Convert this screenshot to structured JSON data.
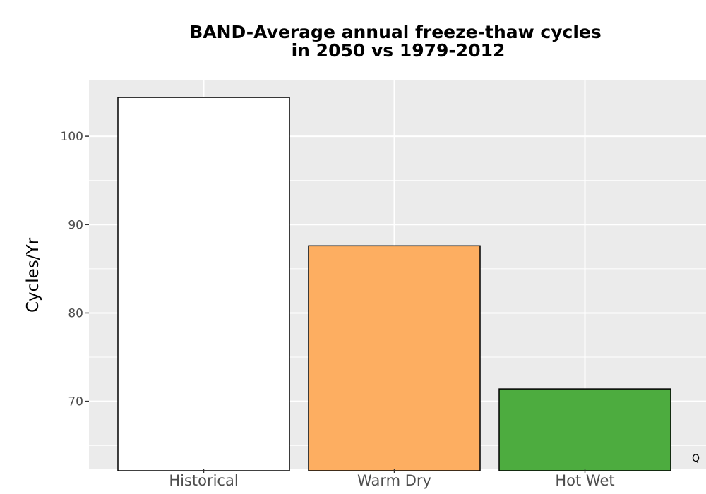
{
  "chart_data": {
    "type": "bar",
    "title_lines": [
      "BAND-Average annual freeze-thaw cycles",
      "in 2050 vs 1979-2012"
    ],
    "xlabel": "",
    "ylabel": "Cycles/Yr",
    "categories": [
      "Historical",
      "Warm Dry",
      "Hot Wet"
    ],
    "values": [
      104.4,
      87.6,
      71.4
    ],
    "colors": [
      "#ffffff",
      "#fdae61",
      "#4dac3f"
    ],
    "bar_outline": "#000000",
    "ylim": [
      62.3,
      106.4
    ],
    "yticks": [
      70,
      80,
      90,
      100
    ],
    "yticks_minor": [
      65,
      75,
      85,
      95,
      105
    ],
    "grid": true,
    "panel_background": "#ebebeb",
    "grid_color": "#ffffff",
    "corner_note": "Q"
  }
}
